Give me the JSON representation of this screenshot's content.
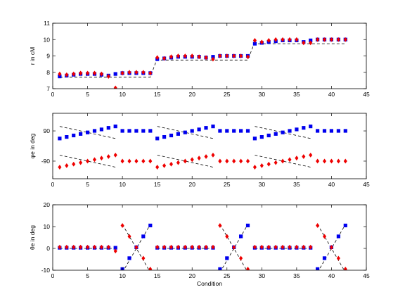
{
  "colors": {
    "series_a": "#0000ee",
    "series_b": "#ee0000",
    "model": "#000000"
  },
  "chart_data": [
    {
      "type": "scatter",
      "ylabel": "r in cM",
      "xlabel": "",
      "xlim": [
        0,
        45
      ],
      "ylim": [
        7,
        11
      ],
      "xticks": [
        0,
        5,
        10,
        15,
        20,
        25,
        30,
        35,
        40,
        45
      ],
      "yticks": [
        7,
        8,
        9,
        10,
        11
      ],
      "ytick_labels": [
        "7",
        "8",
        "9",
        "10",
        "11"
      ],
      "legend": "none",
      "grid": false,
      "x": [
        1,
        2,
        3,
        4,
        5,
        6,
        7,
        8,
        9,
        10,
        11,
        12,
        13,
        14,
        15,
        16,
        17,
        18,
        19,
        20,
        21,
        22,
        23,
        24,
        25,
        26,
        27,
        28,
        29,
        30,
        31,
        32,
        33,
        34,
        35,
        36,
        37,
        38,
        39,
        40,
        41,
        42
      ],
      "series": [
        {
          "marker": "square",
          "color": "#0000ee",
          "values": [
            7.75,
            7.8,
            7.85,
            7.9,
            7.9,
            7.9,
            7.85,
            7.8,
            7.9,
            7.95,
            7.95,
            7.95,
            7.95,
            7.95,
            8.8,
            8.85,
            8.9,
            8.95,
            8.95,
            8.95,
            8.95,
            8.9,
            8.95,
            9.0,
            9.0,
            9.0,
            9.0,
            9.0,
            9.75,
            9.8,
            9.85,
            9.9,
            9.95,
            9.95,
            9.95,
            9.85,
            9.95,
            10.0,
            10.0,
            10.0,
            10.0,
            10.0
          ]
        },
        {
          "marker": "diamond",
          "color": "#ee0000",
          "values": [
            7.9,
            7.85,
            7.9,
            7.95,
            7.95,
            7.95,
            7.9,
            7.75,
            7.05,
            7.95,
            8.0,
            8.0,
            8.0,
            7.95,
            8.9,
            8.85,
            8.95,
            9.0,
            9.0,
            9.0,
            8.95,
            8.9,
            8.8,
            9.0,
            9.0,
            9.0,
            9.0,
            8.95,
            9.95,
            9.85,
            9.95,
            10.0,
            10.0,
            10.0,
            10.0,
            9.8,
            9.8,
            10.0,
            10.0,
            10.0,
            10.0,
            10.0
          ]
        },
        {
          "style": "dashed",
          "color": "#000000",
          "x": [
            1,
            14,
            14.9,
            28,
            28.9,
            42
          ],
          "values": [
            7.7,
            7.7,
            8.75,
            8.75,
            9.75,
            9.75
          ]
        }
      ]
    },
    {
      "type": "scatter",
      "ylabel": "φe in deg",
      "xlabel": "",
      "xlim": [
        0,
        45
      ],
      "ylim": [
        -195,
        195
      ],
      "xticks": [
        0,
        5,
        10,
        15,
        20,
        25,
        30,
        35,
        40,
        45
      ],
      "yticks": [
        -90,
        90
      ],
      "ytick_labels": [
        "-90",
        "90"
      ],
      "legend": "none",
      "grid": false,
      "x": [
        1,
        2,
        3,
        4,
        5,
        6,
        7,
        8,
        9,
        10,
        11,
        12,
        13,
        14,
        15,
        16,
        17,
        18,
        19,
        20,
        21,
        22,
        23,
        24,
        25,
        26,
        27,
        28,
        29,
        30,
        31,
        32,
        33,
        34,
        35,
        36,
        37,
        38,
        39,
        40,
        41,
        42
      ],
      "series": [
        {
          "marker": "square",
          "color": "#0000ee",
          "values": [
            45,
            54,
            63,
            72,
            81,
            90,
            99,
            108,
            117,
            90,
            90,
            90,
            90,
            90,
            45,
            54,
            63,
            72,
            81,
            90,
            99,
            108,
            117,
            90,
            90,
            90,
            90,
            90,
            45,
            54,
            63,
            72,
            81,
            90,
            99,
            108,
            117,
            90,
            90,
            90,
            90,
            90
          ]
        },
        {
          "marker": "diamond",
          "color": "#ee0000",
          "values": [
            -126,
            -117,
            -108,
            -99,
            -90,
            -81,
            -72,
            -63,
            -54,
            -90,
            -90,
            -90,
            -90,
            -90,
            -126,
            -117,
            -108,
            -99,
            -90,
            -81,
            -72,
            -63,
            -54,
            -90,
            -90,
            -90,
            -90,
            -90,
            -126,
            -117,
            -108,
            -99,
            -90,
            -81,
            -72,
            -63,
            -54,
            -90,
            -90,
            -90,
            -90,
            -90
          ]
        },
        {
          "style": "dashed",
          "color": "#000000",
          "segments": [
            {
              "x": [
                1,
                9
              ],
              "values": [
                117,
                45
              ]
            },
            {
              "x": [
                15,
                23
              ],
              "values": [
                117,
                45
              ]
            },
            {
              "x": [
                29,
                37
              ],
              "values": [
                117,
                45
              ]
            },
            {
              "x": [
                1,
                9
              ],
              "values": [
                -54,
                -126
              ]
            },
            {
              "x": [
                15,
                23
              ],
              "values": [
                -54,
                -126
              ]
            },
            {
              "x": [
                29,
                37
              ],
              "values": [
                -54,
                -126
              ]
            }
          ]
        }
      ]
    },
    {
      "type": "scatter",
      "ylabel": "θe in deg",
      "xlabel": "Condition",
      "xlim": [
        0,
        45
      ],
      "ylim": [
        -10,
        20
      ],
      "xticks": [
        0,
        5,
        10,
        15,
        20,
        25,
        30,
        35,
        40,
        45
      ],
      "yticks": [
        -10,
        0,
        10,
        20
      ],
      "ytick_labels": [
        "-10",
        "0",
        "10",
        "20"
      ],
      "legend": "none",
      "grid": false,
      "x": [
        1,
        2,
        3,
        4,
        5,
        6,
        7,
        8,
        9,
        10,
        11,
        12,
        13,
        14,
        15,
        16,
        17,
        18,
        19,
        20,
        21,
        22,
        23,
        24,
        25,
        26,
        27,
        28,
        29,
        30,
        31,
        32,
        33,
        34,
        35,
        36,
        37,
        38,
        39,
        40,
        41,
        42
      ],
      "series": [
        {
          "marker": "square",
          "color": "#0000ee",
          "values": [
            0.3,
            0.3,
            0.3,
            0.3,
            0.3,
            0.3,
            0.3,
            0.3,
            0.3,
            -9.5,
            -4.5,
            0.5,
            5.5,
            10.5,
            0.3,
            0.3,
            0.3,
            0.3,
            0.3,
            0.3,
            0.3,
            0.3,
            0.3,
            -9.5,
            -4.5,
            0.5,
            5.5,
            10.5,
            0.3,
            0.3,
            0.3,
            0.3,
            0.3,
            0.3,
            0.3,
            0.3,
            0.3,
            -9.5,
            -4.5,
            0.5,
            5.5,
            10.5
          ]
        },
        {
          "marker": "diamond",
          "color": "#ee0000",
          "values": [
            0.6,
            0.6,
            0.6,
            0.6,
            0.6,
            0.6,
            0.6,
            0.6,
            -1.2,
            10.5,
            5.5,
            0.5,
            -4.5,
            -9.5,
            0.6,
            0.6,
            0.6,
            0.6,
            0.6,
            0.6,
            0.6,
            0.6,
            0.6,
            10.5,
            5.5,
            0.5,
            -4.5,
            -9.5,
            0.6,
            0.6,
            0.6,
            0.6,
            0.6,
            0.6,
            0.6,
            0.6,
            0.6,
            10.5,
            5.5,
            0.5,
            -4.5,
            -9.5
          ]
        },
        {
          "style": "dashed",
          "color": "#000000",
          "segments": [
            {
              "x": [
                1,
                9
              ],
              "values": [
                0,
                0
              ]
            },
            {
              "x": [
                15,
                23
              ],
              "values": [
                0,
                0
              ]
            },
            {
              "x": [
                29,
                37
              ],
              "values": [
                0,
                0
              ]
            },
            {
              "x": [
                10,
                14
              ],
              "values": [
                11,
                -11
              ]
            },
            {
              "x": [
                24,
                28
              ],
              "values": [
                11,
                -11
              ]
            },
            {
              "x": [
                38,
                42
              ],
              "values": [
                11,
                -11
              ]
            },
            {
              "x": [
                10,
                14
              ],
              "values": [
                -11,
                11
              ]
            },
            {
              "x": [
                24,
                28
              ],
              "values": [
                -11,
                11
              ]
            },
            {
              "x": [
                38,
                42
              ],
              "values": [
                -11,
                11
              ]
            }
          ]
        }
      ]
    }
  ]
}
